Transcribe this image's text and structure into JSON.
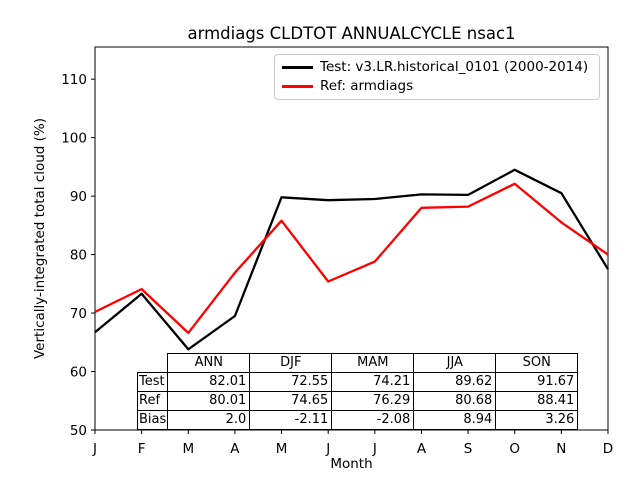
{
  "colors": {
    "axis": "#000000",
    "test_line": "#000000",
    "ref_line": "#ff0000",
    "legend_border": "#cccccc"
  },
  "chart_data": {
    "type": "line",
    "title": "armdiags CLDTOT ANNUALCYCLE nsac1",
    "xlabel": "Month",
    "ylabel": "Vertically-integrated total cloud (%)",
    "x_ticklabels": [
      "J",
      "F",
      "M",
      "A",
      "M",
      "J",
      "J",
      "A",
      "S",
      "O",
      "N",
      "D"
    ],
    "y_ticks": [
      50,
      60,
      70,
      80,
      90,
      100,
      110
    ],
    "xlim": [
      0,
      11
    ],
    "ylim": [
      50,
      115.5
    ],
    "grid": false,
    "legend_position": "upper right",
    "series": [
      {
        "name": "Test: v3.LR.historical_0101 (2000-2014)",
        "color": "#000000",
        "values": [
          66.7,
          73.3,
          63.8,
          69.5,
          89.8,
          89.3,
          89.5,
          90.3,
          90.2,
          94.5,
          90.5,
          77.5
        ]
      },
      {
        "name": "Ref: armdiags",
        "color": "#ff0000",
        "values": [
          70.2,
          74.1,
          66.6,
          76.9,
          85.8,
          75.4,
          78.8,
          88.0,
          88.2,
          92.1,
          85.5,
          80.0
        ]
      }
    ],
    "table": {
      "col_labels": [
        "ANN",
        "DJF",
        "MAM",
        "JJA",
        "SON"
      ],
      "rows": [
        {
          "label": "Test",
          "values": [
            "82.01",
            "72.55",
            "74.21",
            "89.62",
            "91.67"
          ]
        },
        {
          "label": "Ref",
          "values": [
            "80.01",
            "74.65",
            "76.29",
            "80.68",
            "88.41"
          ]
        },
        {
          "label": "Bias",
          "values": [
            "2.0",
            "-2.11",
            "-2.08",
            "8.94",
            "3.26"
          ]
        }
      ]
    }
  }
}
